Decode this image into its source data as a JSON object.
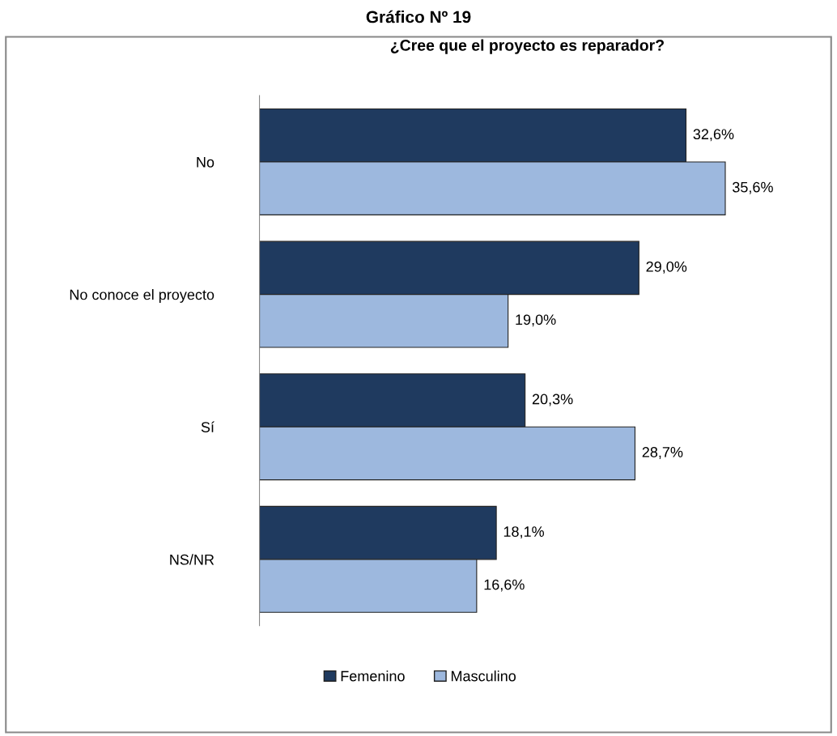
{
  "chart_data": {
    "type": "bar",
    "orientation": "horizontal",
    "title": "Gráfico Nº 19",
    "subtitle": "¿Cree que el proyecto es reparador?",
    "categories": [
      "No",
      "No conoce el proyecto",
      "Sí",
      "NS/NR"
    ],
    "series": [
      {
        "name": "Femenino",
        "color": "#1f3a5f",
        "values": [
          32.6,
          29.0,
          20.3,
          18.1
        ],
        "value_labels": [
          "32,6%",
          "29,0%",
          "20,3%",
          "18,1%"
        ]
      },
      {
        "name": "Masculino",
        "color": "#9db8de",
        "values": [
          35.6,
          19.0,
          28.7,
          16.6
        ],
        "value_labels": [
          "35,6%",
          "19,0%",
          "28,7%",
          "16,6%"
        ]
      }
    ],
    "legend": "bottom",
    "grid": false
  }
}
